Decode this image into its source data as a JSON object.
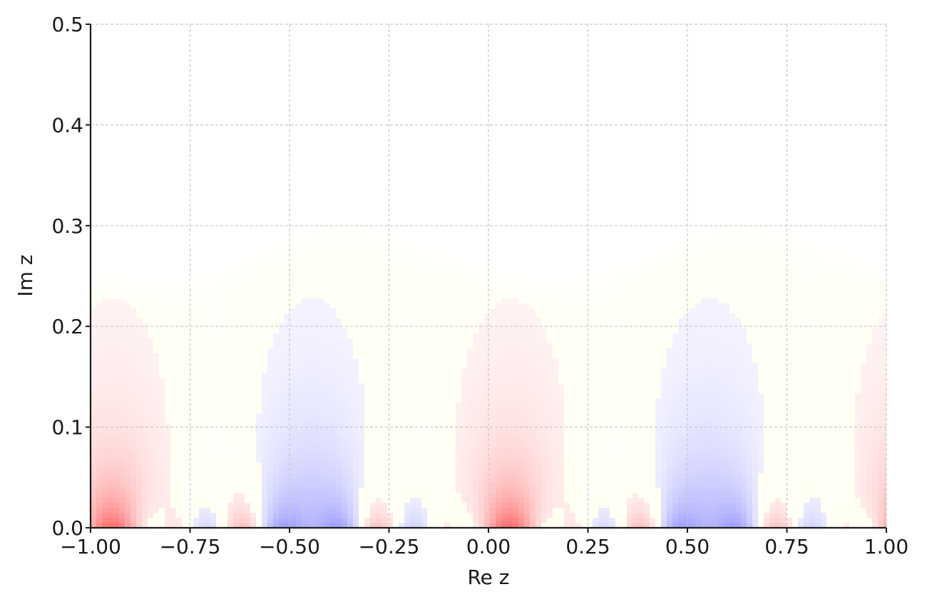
{
  "chart_data": {
    "type": "heatmap",
    "title": "",
    "xlabel": "Re z",
    "ylabel": "Im z",
    "xlim": [
      -1.0,
      1.0
    ],
    "ylim": [
      0.0,
      0.5
    ],
    "x_ticks": [
      -1.0,
      -0.75,
      -0.5,
      -0.25,
      0.0,
      0.25,
      0.5,
      0.75,
      1.0
    ],
    "x_tick_labels": [
      "−1.00",
      "−0.75",
      "−0.50",
      "−0.25",
      "0.00",
      "0.25",
      "0.50",
      "0.75",
      "1.00"
    ],
    "y_ticks": [
      0.0,
      0.1,
      0.2,
      0.3,
      0.4,
      0.5
    ],
    "y_tick_labels": [
      "0.0",
      "0.1",
      "0.2",
      "0.3",
      "0.4",
      "0.5"
    ],
    "grid": true,
    "period": 1.0,
    "colors": {
      "positive": "#ff4d4d",
      "neutral": "#ffffff",
      "negative": "#5a5aff",
      "accent_yellow": "#ffff66"
    },
    "structure": {
      "visible_region_top_im_min": 0.255,
      "visible_region_top_im_max": 0.31,
      "bottom_nodes_re": [
        -0.83,
        -0.5,
        -0.37,
        -0.2,
        0.17,
        0.5,
        0.63,
        0.8
      ]
    }
  }
}
